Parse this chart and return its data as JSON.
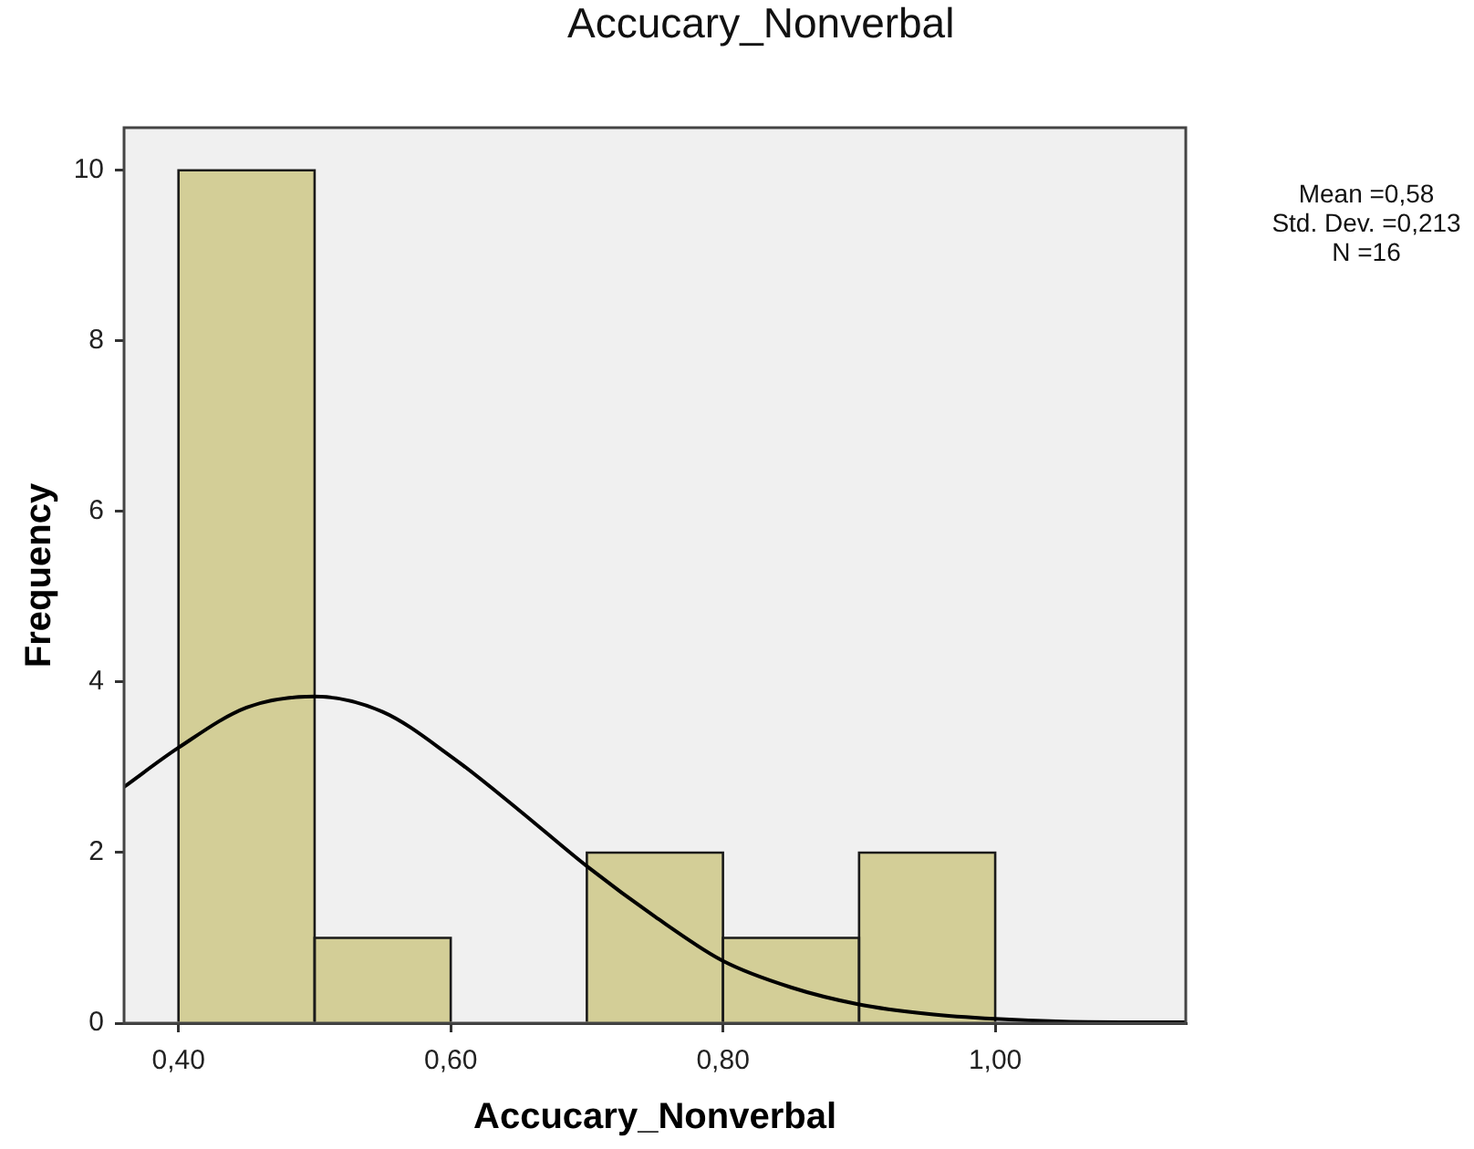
{
  "chart_data": {
    "type": "histogram",
    "title": "Accucary_Nonverbal",
    "xlabel": "Accucary_Nonverbal",
    "ylabel": "Frequency",
    "bins": [
      0.4,
      0.5,
      0.6,
      0.7,
      0.8,
      0.9,
      1.0
    ],
    "series": [
      {
        "color": "#d3ce97",
        "values": [
          10,
          1,
          0,
          2,
          1,
          2
        ]
      },
      {
        "type": "line",
        "color": "#000000",
        "x": [
          0.36,
          0.4,
          0.45,
          0.5,
          0.55,
          0.6,
          0.65,
          0.7,
          0.75,
          0.8,
          0.85,
          0.9,
          0.95,
          1.0,
          1.05,
          1.14
        ],
        "values": [
          2.77,
          3.23,
          3.7,
          3.83,
          3.65,
          3.13,
          2.5,
          1.84,
          1.25,
          0.73,
          0.42,
          0.22,
          0.11,
          0.05,
          0.02,
          0.01
        ]
      }
    ],
    "xlim": [
      0.36,
      1.14
    ],
    "xticks": [
      {
        "value": 0.4,
        "label": "0,40"
      },
      {
        "value": 0.6,
        "label": "0,60"
      },
      {
        "value": 0.8,
        "label": "0,80"
      },
      {
        "value": 1.0,
        "label": "1,00"
      }
    ],
    "ylim": [
      0,
      10.5
    ],
    "yticks": [
      0,
      2,
      4,
      6,
      8,
      10
    ],
    "annotations": [
      "Mean =0,58",
      "Std. Dev. =0,213",
      "N =16"
    ]
  }
}
